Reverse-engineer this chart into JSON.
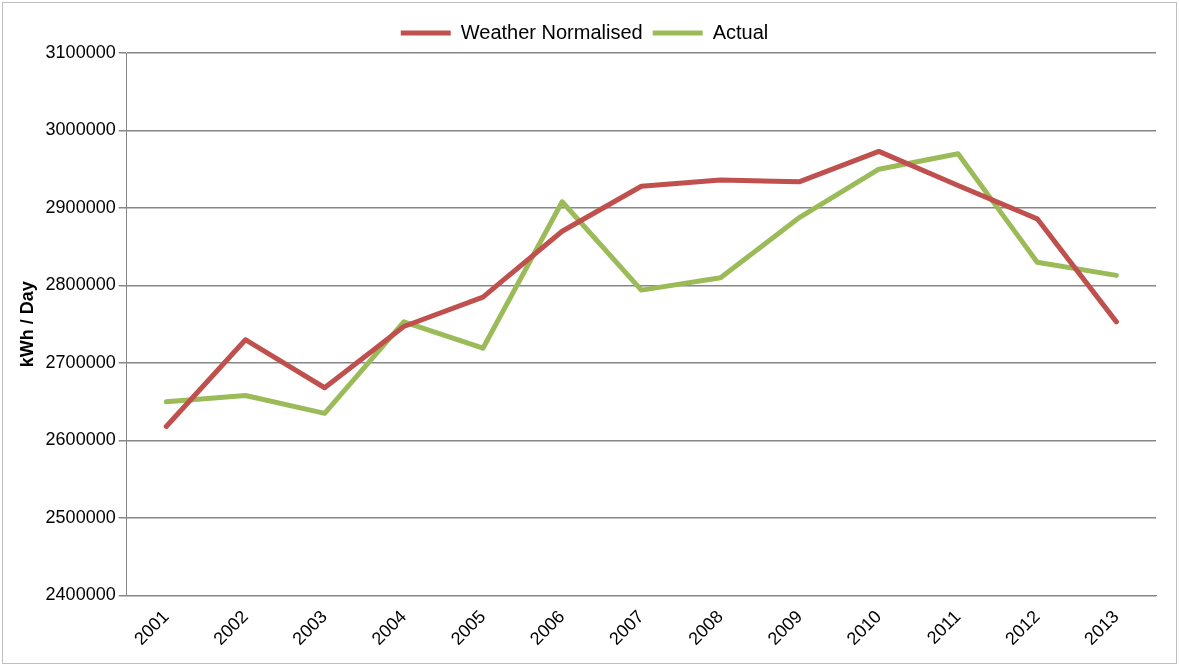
{
  "chart_data": {
    "type": "line",
    "ylabel": "kWh / Day",
    "categories": [
      "2001",
      "2002",
      "2003",
      "2004",
      "2005",
      "2006",
      "2007",
      "2008",
      "2009",
      "2010",
      "2011",
      "2012",
      "2013"
    ],
    "series": [
      {
        "name": "Weather Normalised",
        "color": "#c0504d",
        "values": [
          2618000,
          2730000,
          2668000,
          2747000,
          2785000,
          2870000,
          2928000,
          2936000,
          2934000,
          2973000,
          2929000,
          2886000,
          2753000
        ]
      },
      {
        "name": "Actual",
        "color": "#9bbb59",
        "values": [
          2650000,
          2658000,
          2635000,
          2753000,
          2719000,
          2908000,
          2794000,
          2810000,
          2888000,
          2950000,
          2970000,
          2830000,
          2813000
        ]
      }
    ],
    "ylim": [
      2400000,
      3100000
    ],
    "yticks": [
      2400000,
      2500000,
      2600000,
      2700000,
      2800000,
      2900000,
      3000000,
      3100000
    ],
    "grid": "y",
    "legend": "top",
    "marker": "none",
    "line_style": "solid"
  }
}
